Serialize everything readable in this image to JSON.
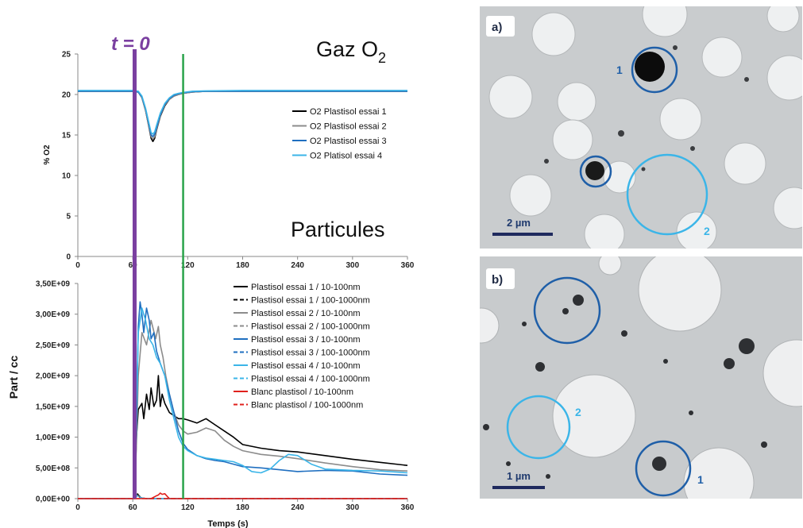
{
  "marker": {
    "label": "t = 0",
    "color": "#7a3fa0"
  },
  "chart_data": [
    {
      "type": "line",
      "title": "Gaz O",
      "title_subscript": "2",
      "ylabel": "% O2",
      "xlim": [
        0,
        360
      ],
      "ylim": [
        0,
        25
      ],
      "x_ticks": [
        "0",
        "60",
        "120",
        "180",
        "240",
        "300",
        "360"
      ],
      "y_ticks": [
        "0",
        "5",
        "10",
        "15",
        "20",
        "25"
      ],
      "vertical_lines": [
        {
          "x": 62,
          "color": "#7a3fa0"
        },
        {
          "x": 115,
          "color": "#2aa34a"
        }
      ],
      "legend_position": "right",
      "series": [
        {
          "name": "O2 Plastisol essai 1",
          "color": "#000000",
          "dash": "",
          "x": [
            0,
            60,
            66,
            70,
            74,
            78,
            80,
            82,
            84,
            86,
            90,
            95,
            100,
            105,
            110,
            115,
            125,
            140,
            180,
            240,
            300,
            360
          ],
          "y": [
            20.4,
            20.4,
            20.3,
            19.6,
            18.0,
            15.8,
            14.6,
            14.2,
            14.6,
            15.6,
            17.3,
            18.6,
            19.4,
            19.8,
            20.0,
            20.15,
            20.3,
            20.4,
            20.4,
            20.4,
            20.4,
            20.4
          ]
        },
        {
          "name": "O2 Plastisol essai 2",
          "color": "#8c8c8c",
          "dash": "",
          "x": [
            0,
            60,
            66,
            70,
            74,
            78,
            80,
            82,
            84,
            86,
            90,
            95,
            100,
            105,
            110,
            115,
            125,
            140,
            180,
            240,
            300,
            360
          ],
          "y": [
            20.4,
            20.4,
            20.3,
            19.6,
            18.0,
            15.9,
            14.8,
            14.5,
            14.8,
            15.7,
            17.4,
            18.7,
            19.4,
            19.8,
            20.0,
            20.15,
            20.3,
            20.4,
            20.4,
            20.4,
            20.4,
            20.4
          ]
        },
        {
          "name": "O2 Plastisol essai 3",
          "color": "#1f6fc0",
          "dash": "",
          "x": [
            0,
            60,
            66,
            70,
            74,
            78,
            80,
            82,
            84,
            86,
            90,
            95,
            100,
            105,
            110,
            115,
            125,
            140,
            180,
            240,
            300,
            360
          ],
          "y": [
            20.4,
            20.4,
            20.3,
            19.7,
            18.2,
            16.1,
            15.0,
            14.8,
            15.1,
            15.9,
            17.5,
            18.8,
            19.5,
            19.9,
            20.1,
            20.2,
            20.35,
            20.4,
            20.4,
            20.4,
            20.4,
            20.4
          ]
        },
        {
          "name": "O2 Platisol essai 4",
          "color": "#3bb5e8",
          "dash": "",
          "x": [
            0,
            60,
            66,
            70,
            74,
            78,
            80,
            82,
            84,
            86,
            90,
            95,
            100,
            105,
            110,
            115,
            125,
            140,
            180,
            240,
            300,
            360
          ],
          "y": [
            20.5,
            20.5,
            20.4,
            19.8,
            18.3,
            16.3,
            15.3,
            15.1,
            15.4,
            16.2,
            17.7,
            18.9,
            19.6,
            20.0,
            20.15,
            20.25,
            20.4,
            20.45,
            20.5,
            20.5,
            20.5,
            20.5
          ]
        }
      ]
    },
    {
      "type": "line",
      "title": "Particules",
      "xlabel": "Temps (s)",
      "ylabel": "Part / cc",
      "xlim": [
        0,
        360
      ],
      "ylim": [
        0,
        3500000000
      ],
      "x_ticks": [
        "0",
        "60",
        "120",
        "180",
        "240",
        "300",
        "360"
      ],
      "y_ticks": [
        "0,00E+00",
        "5,00E+08",
        "1,00E+09",
        "1,50E+09",
        "2,00E+09",
        "2,50E+09",
        "3,00E+09",
        "3,50E+09"
      ],
      "vertical_lines": [
        {
          "x": 62,
          "color": "#7a3fa0"
        },
        {
          "x": 115,
          "color": "#2aa34a"
        }
      ],
      "legend_position": "top-right",
      "series": [
        {
          "name": "Plastisol essai 1 / 10-100nm",
          "color": "#000000",
          "dash": "",
          "x": [
            0,
            62,
            64,
            66,
            70,
            72,
            75,
            78,
            80,
            83,
            86,
            88,
            90,
            92,
            95,
            100,
            105,
            110,
            115,
            120,
            130,
            140,
            150,
            160,
            170,
            180,
            200,
            220,
            240,
            270,
            300,
            330,
            360
          ],
          "y": [
            0,
            0,
            1000000000,
            1450000000,
            1550000000,
            1300000000,
            1700000000,
            1450000000,
            1800000000,
            1500000000,
            1600000000,
            2000000000,
            1500000000,
            1700000000,
            1550000000,
            1400000000,
            1350000000,
            1300000000,
            1300000000,
            1280000000,
            1230000000,
            1300000000,
            1200000000,
            1100000000,
            1000000000,
            880000000,
            820000000,
            780000000,
            760000000,
            700000000,
            640000000,
            590000000,
            540000000
          ]
        },
        {
          "name": "Plastisol essai 1 / 100-1000nm",
          "color": "#000000",
          "dash": "6,3",
          "x": [
            0,
            62,
            64,
            66,
            68,
            70,
            75,
            80,
            360
          ],
          "y": [
            0,
            0,
            100000000,
            60000000,
            30000000,
            10000000,
            0,
            0,
            0
          ]
        },
        {
          "name": "Plastisol essai 2 / 10-100nm",
          "color": "#8c8c8c",
          "dash": "",
          "x": [
            0,
            62,
            64,
            66,
            70,
            75,
            80,
            85,
            88,
            90,
            93,
            96,
            100,
            105,
            110,
            115,
            120,
            130,
            140,
            150,
            160,
            170,
            180,
            200,
            220,
            240,
            270,
            300,
            330,
            360
          ],
          "y": [
            0,
            0,
            900000000,
            2000000000,
            2700000000,
            2500000000,
            2900000000,
            2600000000,
            2800000000,
            2500000000,
            2300000000,
            2000000000,
            1700000000,
            1400000000,
            1200000000,
            1100000000,
            1050000000,
            1080000000,
            1150000000,
            1100000000,
            950000000,
            850000000,
            780000000,
            720000000,
            690000000,
            650000000,
            580000000,
            520000000,
            470000000,
            450000000
          ]
        },
        {
          "name": "Plastisol essai 2 / 100-1000nm",
          "color": "#8c8c8c",
          "dash": "6,3",
          "x": [
            0,
            62,
            64,
            66,
            70,
            75,
            360
          ],
          "y": [
            0,
            0,
            80000000,
            40000000,
            10000000,
            0,
            0
          ]
        },
        {
          "name": "Plastisol essai 3 / 10-100nm",
          "color": "#1f6fc0",
          "dash": "",
          "x": [
            0,
            62,
            64,
            66,
            68,
            70,
            72,
            75,
            78,
            80,
            83,
            86,
            90,
            95,
            100,
            105,
            110,
            115,
            120,
            130,
            140,
            150,
            160,
            170,
            180,
            200,
            220,
            240,
            270,
            300,
            330,
            360
          ],
          "y": [
            0,
            0,
            1200000000,
            2800000000,
            3200000000,
            3000000000,
            2700000000,
            3100000000,
            2900000000,
            2600000000,
            2700000000,
            2400000000,
            2200000000,
            2000000000,
            1700000000,
            1400000000,
            1100000000,
            900000000,
            800000000,
            700000000,
            650000000,
            620000000,
            600000000,
            560000000,
            520000000,
            500000000,
            470000000,
            440000000,
            460000000,
            450000000,
            400000000,
            380000000
          ]
        },
        {
          "name": "Plastisol essai 3 / 100-1000nm",
          "color": "#1f6fc0",
          "dash": "6,3",
          "x": [
            0,
            62,
            64,
            66,
            70,
            75,
            360
          ],
          "y": [
            0,
            0,
            60000000,
            30000000,
            10000000,
            0,
            0
          ]
        },
        {
          "name": "Plastisol essai 4 / 10-100nm",
          "color": "#3bb5e8",
          "dash": "",
          "x": [
            0,
            62,
            64,
            66,
            70,
            74,
            78,
            82,
            86,
            90,
            95,
            100,
            105,
            110,
            115,
            120,
            130,
            140,
            150,
            160,
            170,
            180,
            190,
            200,
            210,
            220,
            230,
            240,
            255,
            270,
            300,
            330,
            360
          ],
          "y": [
            0,
            0,
            1500000000,
            2700000000,
            3100000000,
            2900000000,
            2600000000,
            2500000000,
            2300000000,
            2200000000,
            2000000000,
            1600000000,
            1300000000,
            1000000000,
            850000000,
            780000000,
            700000000,
            660000000,
            640000000,
            620000000,
            600000000,
            540000000,
            440000000,
            420000000,
            480000000,
            620000000,
            720000000,
            700000000,
            560000000,
            480000000,
            460000000,
            450000000,
            420000000
          ]
        },
        {
          "name": "Plastisol essai 4 / 100-1000nm",
          "color": "#3bb5e8",
          "dash": "6,3",
          "x": [
            0,
            62,
            64,
            66,
            70,
            75,
            360
          ],
          "y": [
            0,
            0,
            50000000,
            25000000,
            10000000,
            0,
            0
          ]
        },
        {
          "name": "Blanc plastisol / 10-100nm",
          "color": "#e0201c",
          "dash": "",
          "x": [
            0,
            80,
            85,
            88,
            90,
            92,
            95,
            98,
            100,
            360
          ],
          "y": [
            0,
            0,
            40000000,
            60000000,
            90000000,
            70000000,
            80000000,
            30000000,
            0,
            0
          ]
        },
        {
          "name": "Blanc plastisol / 100-1000nm",
          "color": "#e0201c",
          "dash": "6,3",
          "x": [
            0,
            360
          ],
          "y": [
            0,
            0
          ]
        }
      ]
    }
  ],
  "micrographs": [
    {
      "label": "a)",
      "scale_bar": "2 µm",
      "circles": [
        {
          "num": "1",
          "color": "#1f5fa8"
        },
        {
          "num": "2",
          "color": "#3bb5e8"
        }
      ]
    },
    {
      "label": "b)",
      "scale_bar": "1 µm",
      "circles": [
        {
          "num": "2",
          "color": "#3bb5e8"
        },
        {
          "num": "1",
          "color": "#1f5fa8"
        }
      ]
    }
  ]
}
